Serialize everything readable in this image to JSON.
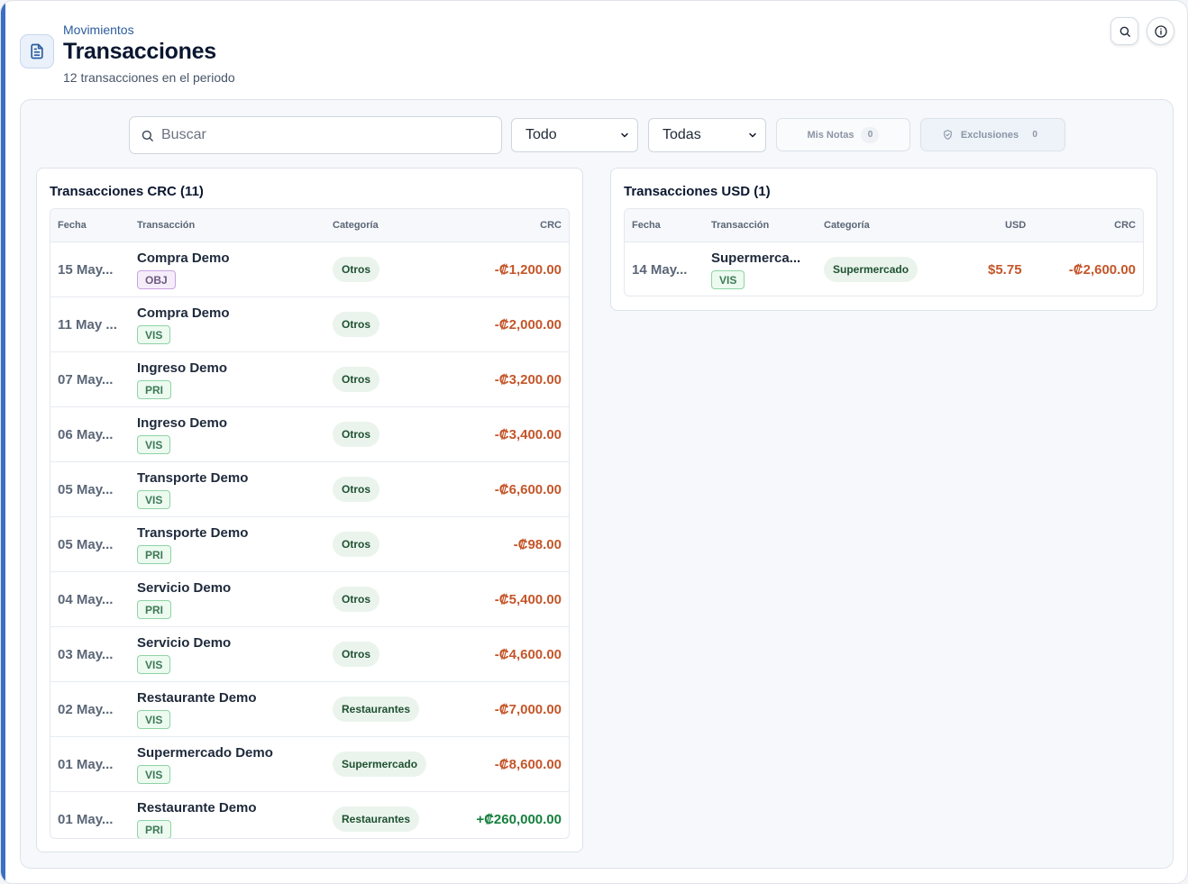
{
  "header": {
    "eyebrow": "Movimientos",
    "title": "Transacciones",
    "subtitle": "12 transacciones en el periodo",
    "icon": "document-icon",
    "actions": [
      "search-icon",
      "info-icon"
    ]
  },
  "filters": {
    "search_placeholder": "Buscar",
    "type_selected": "Todo",
    "category_selected": "Todas",
    "notes_label": "Mis Notas",
    "notes_count": "0",
    "exclusions_label": "Exclusiones",
    "exclusions_count": "0"
  },
  "crc": {
    "title": "Transacciones CRC (11)",
    "columns": [
      "Fecha",
      "Transacción",
      "Categoría",
      "CRC"
    ],
    "rows": [
      {
        "date": "15 May...",
        "name": "Compra Demo",
        "tag": "OBJ",
        "category": "Otros",
        "amount": "-₡1,200.00"
      },
      {
        "date": "11 May ...",
        "name": "Compra Demo",
        "tag": "VIS",
        "category": "Otros",
        "amount": "-₡2,000.00"
      },
      {
        "date": "07 May...",
        "name": "Ingreso Demo",
        "tag": "PRI",
        "category": "Otros",
        "amount": "-₡3,200.00"
      },
      {
        "date": "06 May...",
        "name": "Ingreso Demo",
        "tag": "VIS",
        "category": "Otros",
        "amount": "-₡3,400.00"
      },
      {
        "date": "05 May...",
        "name": "Transporte Demo",
        "tag": "VIS",
        "category": "Otros",
        "amount": "-₡6,600.00"
      },
      {
        "date": "05 May...",
        "name": "Transporte Demo",
        "tag": "PRI",
        "category": "Otros",
        "amount": "-₡98.00"
      },
      {
        "date": "04 May...",
        "name": "Servicio Demo",
        "tag": "PRI",
        "category": "Otros",
        "amount": "-₡5,400.00"
      },
      {
        "date": "03 May...",
        "name": "Servicio Demo",
        "tag": "VIS",
        "category": "Otros",
        "amount": "-₡4,600.00"
      },
      {
        "date": "02 May...",
        "name": "Restaurante Demo",
        "tag": "VIS",
        "category": "Restaurantes",
        "amount": "-₡7,000.00"
      },
      {
        "date": "01 May...",
        "name": "Supermercado Demo",
        "tag": "VIS",
        "category": "Supermercado",
        "amount": "-₡8,600.00"
      },
      {
        "date": "01 May...",
        "name": "Restaurante Demo",
        "tag": "PRI",
        "category": "Restaurantes",
        "amount": "+₡260,000.00"
      }
    ]
  },
  "usd": {
    "title": "Transacciones USD (1)",
    "columns": [
      "Fecha",
      "Transacción",
      "Categoría",
      "USD",
      "CRC"
    ],
    "rows": [
      {
        "date": "14 May...",
        "name": "Supermerca...",
        "tag": "VIS",
        "category": "Supermercado",
        "usd": "$5.75",
        "crc": "-₡2,600.00"
      }
    ]
  },
  "colors": {
    "accent": "#3b6fc4",
    "negative": "#c4562a",
    "positive": "#15803d"
  }
}
